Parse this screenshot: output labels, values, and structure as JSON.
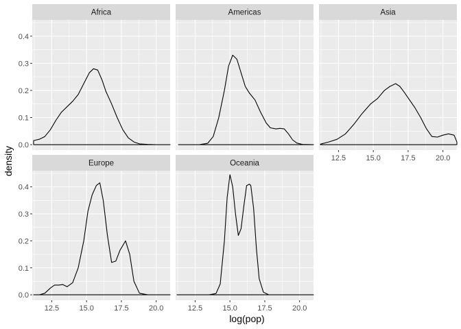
{
  "chart_data": {
    "type": "line",
    "subtype": "faceted density plot",
    "xlabel": "log(pop)",
    "ylabel": "density",
    "xlim": [
      11.1,
      21.0
    ],
    "ylim": [
      -0.02,
      0.46
    ],
    "x_ticks": [
      12.5,
      15.0,
      17.5,
      20.0
    ],
    "x_tick_labels": [
      "12.5",
      "15.0",
      "17.5",
      "20.0"
    ],
    "y_ticks": [
      0.0,
      0.1,
      0.2,
      0.3,
      0.4
    ],
    "y_tick_labels": [
      "0.0",
      "0.1",
      "0.2",
      "0.3",
      "0.4"
    ],
    "grid": true,
    "facets": [
      {
        "name": "Africa",
        "x": [
          11.2,
          11.6,
          12.0,
          12.4,
          12.8,
          13.2,
          13.6,
          14.0,
          14.4,
          14.8,
          15.2,
          15.5,
          15.8,
          16.1,
          16.4,
          16.8,
          17.2,
          17.6,
          18.0,
          18.4,
          18.8,
          19.4,
          20.0,
          20.6,
          21.0
        ],
        "y": [
          0.015,
          0.02,
          0.03,
          0.055,
          0.09,
          0.12,
          0.14,
          0.16,
          0.185,
          0.225,
          0.265,
          0.28,
          0.275,
          0.24,
          0.195,
          0.15,
          0.1,
          0.055,
          0.025,
          0.01,
          0.003,
          0.001,
          0.0,
          0.0,
          0.0
        ]
      },
      {
        "name": "Americas",
        "x": [
          11.3,
          12.0,
          12.8,
          13.4,
          13.8,
          14.2,
          14.6,
          14.9,
          15.2,
          15.5,
          15.8,
          16.1,
          16.4,
          16.8,
          17.2,
          17.6,
          17.9,
          18.3,
          18.6,
          18.9,
          19.2,
          19.5,
          19.8,
          20.2,
          21.0
        ],
        "y": [
          0.0,
          0.0,
          0.0,
          0.005,
          0.03,
          0.1,
          0.2,
          0.29,
          0.33,
          0.315,
          0.265,
          0.215,
          0.19,
          0.165,
          0.12,
          0.08,
          0.062,
          0.058,
          0.06,
          0.058,
          0.04,
          0.018,
          0.006,
          0.001,
          0.0
        ]
      },
      {
        "name": "Asia",
        "x": [
          11.2,
          11.8,
          12.4,
          13.0,
          13.6,
          14.2,
          14.8,
          15.3,
          15.8,
          16.2,
          16.6,
          16.9,
          17.2,
          17.6,
          18.0,
          18.4,
          18.8,
          19.2,
          19.6,
          20.0,
          20.4,
          20.8,
          21.0
        ],
        "y": [
          0.002,
          0.01,
          0.02,
          0.04,
          0.075,
          0.115,
          0.15,
          0.17,
          0.2,
          0.215,
          0.225,
          0.215,
          0.195,
          0.165,
          0.135,
          0.1,
          0.06,
          0.03,
          0.028,
          0.035,
          0.04,
          0.035,
          0.01
        ]
      },
      {
        "name": "Europe",
        "x": [
          11.2,
          11.6,
          12.0,
          12.4,
          12.7,
          13.0,
          13.3,
          13.6,
          14.0,
          14.4,
          14.8,
          15.1,
          15.4,
          15.7,
          15.95,
          16.2,
          16.5,
          16.8,
          17.1,
          17.4,
          17.8,
          18.1,
          18.4,
          18.8,
          19.4,
          20.0,
          20.6,
          21.0
        ],
        "y": [
          0.0,
          0.0,
          0.006,
          0.025,
          0.036,
          0.036,
          0.038,
          0.03,
          0.045,
          0.1,
          0.2,
          0.31,
          0.37,
          0.405,
          0.415,
          0.35,
          0.22,
          0.12,
          0.125,
          0.165,
          0.2,
          0.15,
          0.05,
          0.006,
          0.0,
          0.0,
          0.0,
          0.0
        ]
      },
      {
        "name": "Oceania",
        "x": [
          11.2,
          12.5,
          13.5,
          14.0,
          14.3,
          14.6,
          14.8,
          15.0,
          15.2,
          15.4,
          15.6,
          15.8,
          16.0,
          16.2,
          16.4,
          16.5,
          16.7,
          16.9,
          17.1,
          17.4,
          17.8,
          18.5,
          19.5,
          21.0
        ],
        "y": [
          0.0,
          0.0,
          0.0,
          0.005,
          0.04,
          0.2,
          0.36,
          0.445,
          0.4,
          0.3,
          0.22,
          0.245,
          0.33,
          0.405,
          0.41,
          0.405,
          0.32,
          0.17,
          0.06,
          0.01,
          0.0,
          0.0,
          0.0,
          0.0
        ]
      }
    ]
  }
}
